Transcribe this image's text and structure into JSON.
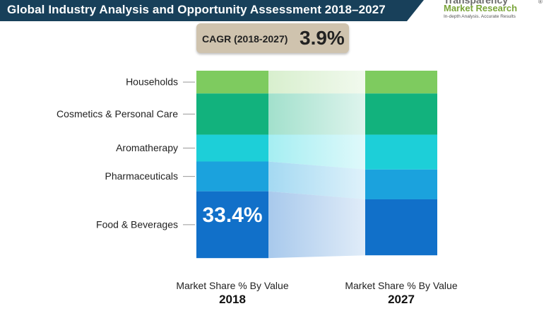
{
  "header": {
    "title": "Global  Industry Analysis and Opportunity Assessment 2018–2027"
  },
  "logo": {
    "line1": "Transparency",
    "line2": "Market Research",
    "tagline": "In-depth Analysis. Accurate Results",
    "registered": "®"
  },
  "cagr": {
    "label": "CAGR (2018-2027)",
    "value": "3.9%"
  },
  "chart_data": {
    "type": "stacked-bar",
    "categories": [
      "Households",
      "Cosmetics & Personal Care",
      "Aromatherapy",
      "Pharmaceuticals",
      "Food & Beverages"
    ],
    "x": [
      "2018",
      "2027"
    ],
    "bars": [
      {
        "label": "Market Share % By Value",
        "year": "2018",
        "values": [
          11.4,
          20.6,
          13.4,
          14.9,
          33.4
        ]
      },
      {
        "label": "Market Share % By Value",
        "year": "2027",
        "values": [
          11.4,
          20.6,
          17.4,
          14.9,
          28.0
        ]
      }
    ],
    "highlight": {
      "category": "Food & Beverages",
      "year": "2018",
      "text": "33.4%"
    },
    "colors": {
      "Households": "#7ecb5f",
      "Cosmetics & Personal Care": "#12b27d",
      "Aromatherapy": "#1dcfd8",
      "Pharmaceuticals": "#1ba2dd",
      "Food & Beverages": "#1170c9"
    },
    "connector_colors": {
      "Households": "#d8efce",
      "Cosmetics & Personal Care": "#a2e0cc",
      "Aromatherapy": "#a5eef2",
      "Pharmaceuticals": "#a4d9f2",
      "Food & Beverages": "#a8c9ec"
    },
    "ylim": [
      0,
      100
    ]
  }
}
